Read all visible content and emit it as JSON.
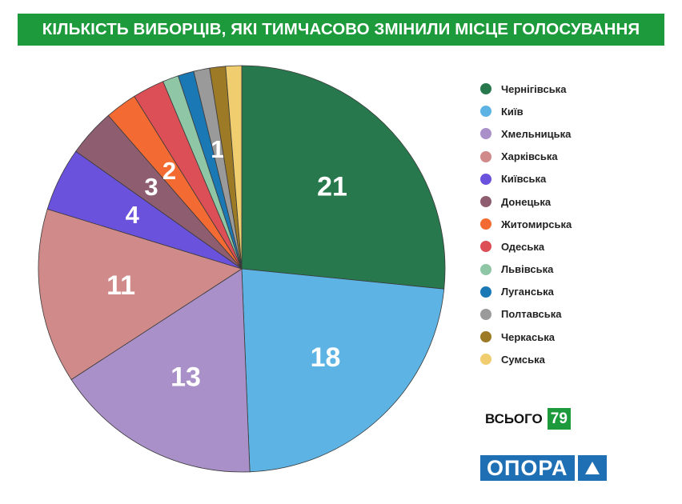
{
  "title": "КІЛЬКІСТЬ ВИБОРЦІВ, ЯКІ ТИМЧАСОВО ЗМІНИЛИ МІСЦЕ ГОЛОСУВАННЯ",
  "total": {
    "label": "ВСЬОГО",
    "value": "79"
  },
  "logo": {
    "text": "ОПОРА"
  },
  "chart_data": {
    "type": "pie",
    "series": [
      {
        "label": "Чернігівська",
        "value": 21,
        "color": "#27784c",
        "value_label": "21"
      },
      {
        "label": "Київ",
        "value": 18,
        "color": "#5db4e4",
        "value_label": "18"
      },
      {
        "label": "Хмельницька",
        "value": 13,
        "color": "#aa90c8",
        "value_label": "13"
      },
      {
        "label": "Харківська",
        "value": 11,
        "color": "#d08a8a",
        "value_label": "11"
      },
      {
        "label": "Київська",
        "value": 4,
        "color": "#6b52dc",
        "value_label": "4"
      },
      {
        "label": "Донецька",
        "value": 3,
        "color": "#8e5e70",
        "value_label": "3"
      },
      {
        "label": "Житомирська",
        "value": 2,
        "color": "#f36b32",
        "value_label": "2"
      },
      {
        "label": "Одеська",
        "value": 2,
        "color": "#dd4f57",
        "value_label": ""
      },
      {
        "label": "Львівська",
        "value": 1,
        "color": "#8fc6a6",
        "value_label": ""
      },
      {
        "label": "Луганська",
        "value": 1,
        "color": "#1a78b4",
        "value_label": ""
      },
      {
        "label": "Полтавська",
        "value": 1,
        "color": "#9a9a9a",
        "value_label": "1"
      },
      {
        "label": "Черкаська",
        "value": 1,
        "color": "#9c7a26",
        "value_label": ""
      },
      {
        "label": "Сумська",
        "value": 1,
        "color": "#f0cd6e",
        "value_label": ""
      }
    ],
    "legend_position": "right"
  }
}
